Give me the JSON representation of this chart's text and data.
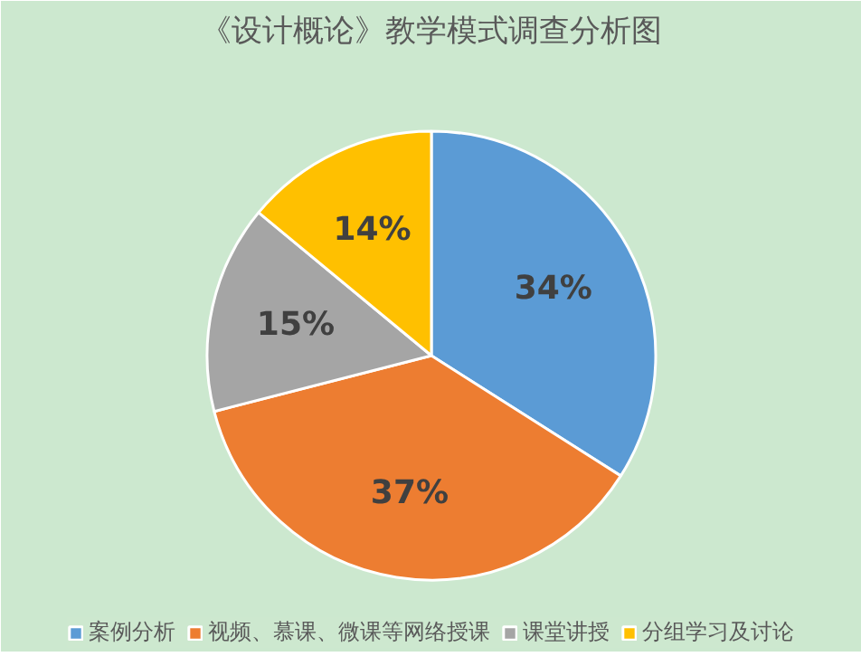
{
  "chart_data": {
    "type": "pie",
    "title": "《设计概论》教学模式调查分析图",
    "categories": [
      "案例分析",
      "视频、慕课、微课等网络授课",
      "课堂讲授",
      "分组学习及讨论"
    ],
    "values": [
      34,
      37,
      15,
      14
    ],
    "colors": [
      "#5b9bd5",
      "#ed7d31",
      "#a5a5a5",
      "#ffc000"
    ],
    "value_labels": [
      "34%",
      "37%",
      "15%",
      "14%"
    ],
    "legend": "bottom"
  }
}
